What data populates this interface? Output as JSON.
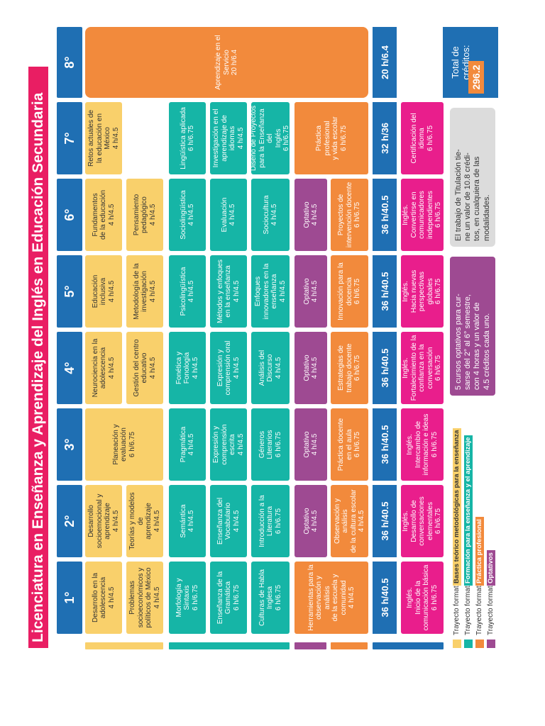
{
  "title": "Licenciatura en Enseñanza y Aprendizaje del Inglés en Educación Secundaria",
  "semesters": [
    "1°",
    "2°",
    "3°",
    "4°",
    "5°",
    "6°",
    "7°",
    "8°"
  ],
  "courses": {
    "s1_y1": "Desarrollo en la\nadolescencia\n4 h/4.5",
    "s2_y1": "Desarrollo\nsocioemocional y\naprendizaje\n4 h/4.5",
    "s3_y1": "Planeación y\nevaluación\n6 h/6.75",
    "s4_y1": "Neurociencia en la\nadolescencia\n4 h/4.5",
    "s5_y1": "Educación\ninclusiva\n4 h/4.5",
    "s6_y1": "Fundamentos\nde la educación\n4 h/4.5",
    "s7_y1": "Retos actuales de\nla educación en\nMéxico\n4 h/4.5",
    "s1_y2": "Problemas\nsocioeconómicos y\npolíticos de México\n4 h/4.5",
    "s2_y2": "Teorías y modelos de\naprendizaje\n4 h/4.5",
    "s4_y2": "Gestión del centro\neducativo\n4 h/4.5",
    "s5_y2": "Metodología de la\ninvestigación\n4 h/4.5",
    "s6_y2": "Pensamiento\npedagógico\n4 h/4.5",
    "s1_t1": "Morfología y\nSintaxis\n6 h/6.75",
    "s2_t1": "Semántica\n4 h/4.5",
    "s3_t1": "Pragmática\n4 h/4.5",
    "s4_t1": "Fonética y\nFonología\n4 h/4.5",
    "s5_t1": "Psicolingüística\n4 h/4.5",
    "s6_t1": "Sociolingüística\n4 h/4.5",
    "s7_t1": "Lingüística aplicada\n6 h/6.75",
    "s1_t2": "Enseñanza de la\nGramática\n6 h/6.75",
    "s2_t2": "Enseñanza del\nVocabulario\n4 h/4.5",
    "s3_t2": "Expresión y\ncomprensión\nescrita\n4 h/4.5",
    "s4_t2": "Expresión y\ncomprensión oral\n4 h/4.5",
    "s5_t2": "Métodos y enfoques\nen la enseñanza\n4 h/4.5",
    "s6_t2": "Evaluación\n4 h/4.5",
    "s7_t2": "Investigación en el\naprendizaje de\nidiomas\n4 h/4.5",
    "s1_t3": "Culturas de Habla\nInglesa\n6 h/6.75",
    "s2_t3": "Introducción a la\nLiteratura\n6 h/6.75",
    "s3_t3": "Géneros\nLiterarios\n6 h/6.75",
    "s4_t3": "Análisis del\nDiscurso\n4 h/4.5",
    "s5_t3": "Enfoques\ninnovadores en la\nenseñanza\n4 h/4.5",
    "s6_t3": "Sociocultura\n4 h/4.5",
    "s7_t3": "Diseño de Proyectos\npara la Enseñanza del\nInglés\n6 h/6.75",
    "s2_p": "Optativo\n4 h/4.5",
    "s3_p": "Optativo\n4 h/4.5",
    "s4_p": "Optativo\n4 h/4.5",
    "s5_p": "Optativo\n4 h/4.5",
    "s6_p": "Optativo\n4 h/4.5",
    "s1_o": "Herramientas para la\nobservación y análisis\nde la escuela y\ncomunidad\n4 h/4.5",
    "s2_o": "Observación y análisis\nde la cultura escolar\n4 h/4.5",
    "s3_o": "Práctica docente\nen el aula\n6 h/6.75",
    "s4_o": "Estrategias de\ntrabajo docente\n6 h/6.75",
    "s5_o": "Innovación para la\ndocencia\n6 h/6.75",
    "s6_o": "Proyectos de\nintervención docente\n6 h/6.75",
    "s7_o": "Práctica\nprofesional\ny vida escolar\n6 h/6.75",
    "s8_o": "Aprendizaje en el\nServicio\n20 h/6.4",
    "s1_m": "Inglés.\nInicio de la\ncomunicación básica\n6 h/6.75",
    "s2_m": "Inglés.\nDesarrollo de\nconversaciones\nelementales\n6 h/6.75",
    "s3_m": "Inglés.\nIntercambio de\ninformación e ideas\n6 h/6.75",
    "s4_m": "Inglés.\nFortalecimiento de la\nconfianza en la\nconversación\n6 h/6.75",
    "s5_m": "Inglés.\nHacia nuevas\nperspectivas globales\n6 h/6.75",
    "s6_m": "Inglés.\nConvertirse en\ncomunicadores\nindependientes\n6 h/6.75",
    "s7_m": "Certificación del idioma\n6 h/6.75"
  },
  "totals": [
    "36 h/40.5",
    "36 h/40.5",
    "36 h/40.5",
    "36 h/40.5",
    "36 h/40.5",
    "36 h/40.5",
    "32 h/36",
    "20 h/6.4"
  ],
  "legend": [
    {
      "label": "Trayecto formativo",
      "tag": "Bases teórico metodológicas para la enseñanza",
      "color": "#f9d06b"
    },
    {
      "label": "Trayecto formativo",
      "tag": "Formación para la enseñanza y el aprendizaje",
      "color": "#16b5a6"
    },
    {
      "label": "Trayecto formativo",
      "tag": "Práctica profesional",
      "color": "#f28a3c"
    },
    {
      "label": "Trayecto formativo",
      "tag": "Optativos",
      "color": "#9e4a92"
    }
  ],
  "notes": {
    "optativos": "5 cursos optativos para cur-\nsarse del 2° al 6° semestre,\ncon 4 horas y un valor de\n4.5 créditos cada uno.",
    "titulacion": "El trabajo de Titulación tie-\nne un valor de 10.8 crédi-\ntos, en cualquiera de las\nmodalidades."
  },
  "total_credits": {
    "label": "Total de créditos:",
    "value": "296.2"
  },
  "colors": {
    "blue": "#1f6fb3",
    "yellow": "#f9d06b",
    "teal": "#16b5a6",
    "orange": "#f28a3c",
    "purple": "#9e4a92",
    "pink": "#e91e8c",
    "title": "#e91e63"
  }
}
